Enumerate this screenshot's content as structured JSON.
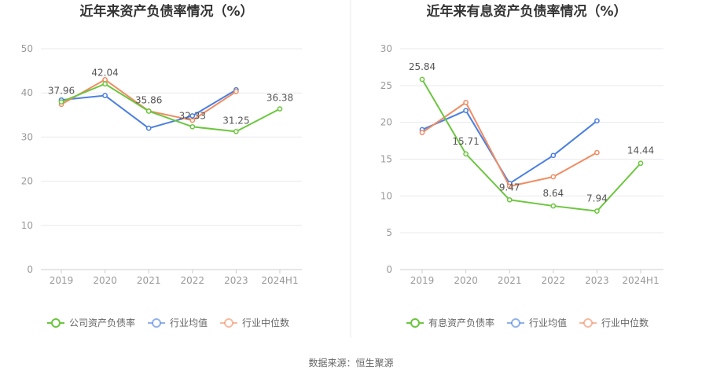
{
  "source": "数据来源：恒生聚源",
  "chart_data": [
    {
      "type": "line",
      "title": "近年来资产负债率情况（%）",
      "categories": [
        "2019",
        "2020",
        "2021",
        "2022",
        "2023",
        "2024H1"
      ],
      "ylim": [
        0,
        50
      ],
      "yticks": [
        "0",
        "10",
        "20",
        "30",
        "40",
        "50"
      ],
      "grid": true,
      "legend_placement": "bottom",
      "series": [
        {
          "name": "公司资产负债率",
          "color": "#6cc63f",
          "values": [
            37.96,
            42.04,
            35.86,
            32.33,
            31.25,
            36.38
          ],
          "labels": [
            "37.96",
            "42.04",
            "35.86",
            "32.33",
            "31.25",
            "36.38"
          ]
        },
        {
          "name": "行业均值",
          "color": "#4a7fe0",
          "values": [
            38.4,
            39.4,
            32.0,
            34.8,
            40.7,
            null
          ]
        },
        {
          "name": "行业中位数",
          "color": "#f08c63",
          "values": [
            37.4,
            43.0,
            35.9,
            33.8,
            40.3,
            null
          ]
        }
      ]
    },
    {
      "type": "line",
      "title": "近年来有息资产负债率情况（%）",
      "categories": [
        "2019",
        "2020",
        "2021",
        "2022",
        "2023",
        "2024H1"
      ],
      "ylim": [
        0,
        30
      ],
      "yticks": [
        "0",
        "5",
        "10",
        "15",
        "20",
        "25",
        "30"
      ],
      "grid": true,
      "legend_placement": "bottom",
      "series": [
        {
          "name": "有息资产负债率",
          "color": "#6cc63f",
          "values": [
            25.84,
            15.71,
            9.47,
            8.64,
            7.94,
            14.44
          ],
          "labels": [
            "25.84",
            "15.71",
            "9.47",
            "8.64",
            "7.94",
            "14.44"
          ]
        },
        {
          "name": "行业均值",
          "color": "#4a7fe0",
          "values": [
            19.0,
            21.6,
            11.7,
            15.5,
            20.2,
            null
          ]
        },
        {
          "name": "行业中位数",
          "color": "#f08c63",
          "values": [
            18.6,
            22.7,
            11.3,
            12.6,
            15.9,
            null
          ]
        }
      ]
    }
  ]
}
